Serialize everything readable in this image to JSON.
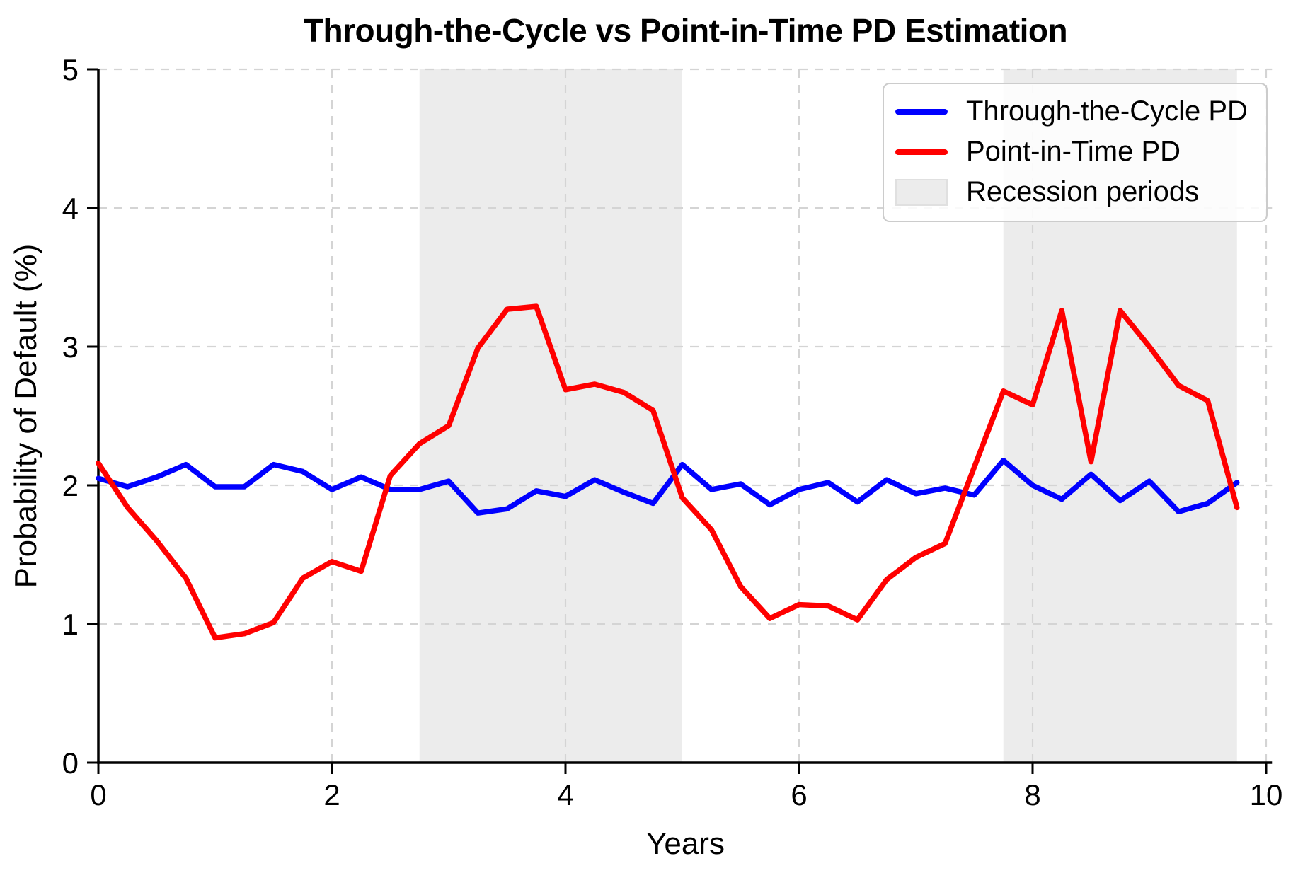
{
  "figure": {
    "title": "Through-the-Cycle vs Point-in-Time PD Estimation",
    "xlabel": "Years",
    "ylabel": "Probability of Default (%)"
  },
  "legend": {
    "items": [
      {
        "label": "Through-the-Cycle PD",
        "swatch": "line",
        "color": "#0000ff"
      },
      {
        "label": "Point-in-Time PD",
        "swatch": "line",
        "color": "#ff0000"
      },
      {
        "label": "Recession periods",
        "swatch": "patch",
        "color": "#ececec"
      }
    ]
  },
  "chart_data": {
    "type": "line",
    "title": "Through-the-Cycle vs Point-in-Time PD Estimation",
    "xlabel": "Years",
    "ylabel": "Probability of Default (%)",
    "xlim": [
      0,
      10.05
    ],
    "ylim": [
      0,
      5
    ],
    "xticks": [
      0,
      2,
      4,
      6,
      8,
      10
    ],
    "yticks": [
      0,
      1,
      2,
      3,
      4,
      5
    ],
    "grid": true,
    "grid_style": "dashed",
    "legend_position": "upper right",
    "x": [
      0,
      0.25,
      0.5,
      0.75,
      1,
      1.25,
      1.5,
      1.75,
      2,
      2.25,
      2.5,
      2.75,
      3,
      3.25,
      3.5,
      3.75,
      4,
      4.25,
      4.5,
      4.75,
      5,
      5.25,
      5.5,
      5.75,
      6,
      6.25,
      6.5,
      6.75,
      7,
      7.25,
      7.5,
      7.75,
      8,
      8.25,
      8.5,
      8.75,
      9,
      9.25,
      9.5,
      9.75
    ],
    "series": [
      {
        "name": "Through-the-Cycle PD",
        "color": "#0000ff",
        "values": [
          2.05,
          1.99,
          2.06,
          2.15,
          1.99,
          1.99,
          2.15,
          2.1,
          1.97,
          2.06,
          1.97,
          1.97,
          2.03,
          1.8,
          1.83,
          1.96,
          1.92,
          2.04,
          1.95,
          1.87,
          2.15,
          1.97,
          2.01,
          1.86,
          1.97,
          2.02,
          1.88,
          2.04,
          1.94,
          1.98,
          1.93,
          2.18,
          2.0,
          1.9,
          2.08,
          1.89,
          2.03,
          1.81,
          1.87,
          2.02
        ]
      },
      {
        "name": "Point-in-Time PD",
        "color": "#ff0000",
        "values": [
          2.16,
          1.84,
          1.6,
          1.33,
          0.9,
          0.93,
          1.01,
          1.33,
          1.45,
          1.38,
          2.07,
          2.3,
          2.43,
          2.99,
          3.27,
          3.29,
          2.69,
          2.73,
          2.67,
          2.54,
          1.91,
          1.68,
          1.27,
          1.04,
          1.14,
          1.13,
          1.03,
          1.32,
          1.48,
          1.58,
          2.13,
          2.68,
          2.58,
          3.26,
          2.17,
          3.26,
          3.0,
          2.72,
          2.61,
          1.84
        ]
      }
    ],
    "recession_bands": [
      [
        2.75,
        5.0
      ],
      [
        7.75,
        9.75
      ]
    ],
    "band_color": "#ececec",
    "grid_color": "#d4d4d4",
    "axis_color": "#000000"
  }
}
